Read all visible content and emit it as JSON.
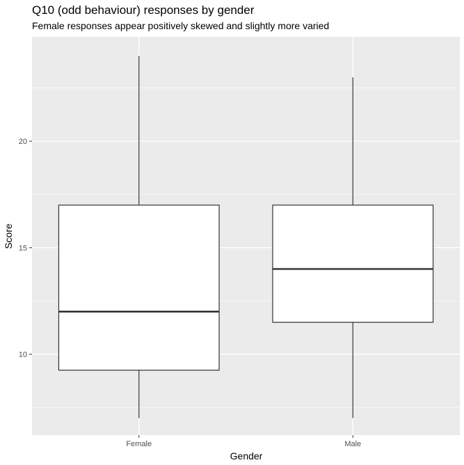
{
  "chart_data": {
    "type": "boxplot",
    "title": "Q10 (odd behaviour) responses by gender",
    "subtitle": "Female responses appear positively skewed and slightly more varied",
    "xlabel": "Gender",
    "ylabel": "Score",
    "ylim": [
      6.2,
      24.9
    ],
    "y_ticks": [
      10,
      15,
      20
    ],
    "y_minor_ticks": [
      7.5,
      12.5,
      17.5,
      22.5
    ],
    "grid": true,
    "categories": [
      "Female",
      "Male"
    ],
    "boxes": [
      {
        "category": "Female",
        "min": 7,
        "q1": 9.25,
        "median": 12,
        "q3": 17,
        "max": 24
      },
      {
        "category": "Male",
        "min": 7,
        "q1": 11.5,
        "median": 14,
        "q3": 17,
        "max": 23
      }
    ],
    "colors": {
      "panel_background": "#ebebeb",
      "grid": "#ffffff",
      "box_fill": "#ffffff",
      "box_stroke": "#333333",
      "tick_text": "#4d4d4d",
      "tick_mark": "#333333"
    }
  }
}
